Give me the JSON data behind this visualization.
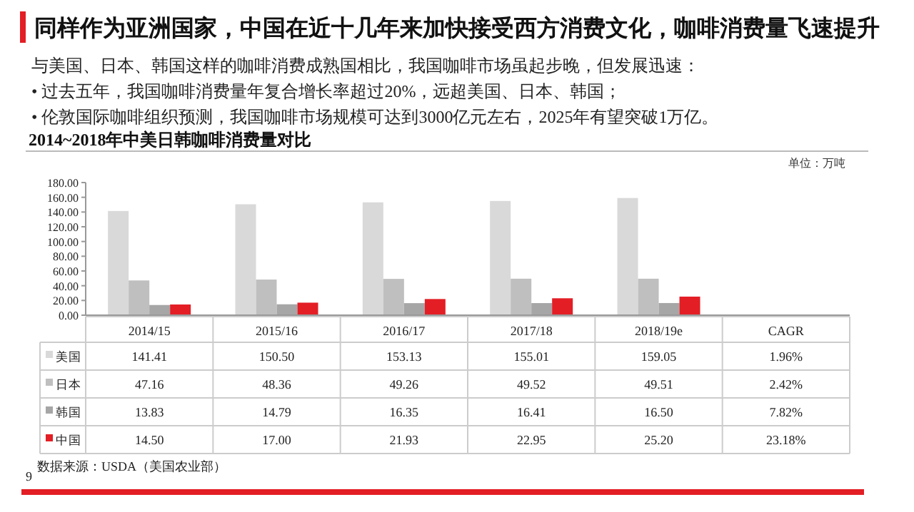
{
  "chart_data": {
    "type": "bar",
    "title": "同样作为亚洲国家，中国在近十几年来加快接受西方消费文化，咖啡消费量飞速提升",
    "subtitle": "2014~2018年中美日韩咖啡消费量对比",
    "ylabel": "单位：万吨",
    "categories": [
      "2014/15",
      "2015/16",
      "2016/17",
      "2017/18",
      "2018/19e",
      "CAGR"
    ],
    "series": [
      {
        "name": "美国",
        "color": "#d9d9d9",
        "values": [
          141.41,
          150.5,
          153.13,
          155.01,
          159.05,
          null
        ],
        "value_labels": [
          "141.41",
          "150.50",
          "153.13",
          "155.01",
          "159.05",
          "1.96%"
        ]
      },
      {
        "name": "日本",
        "color": "#bfbfbf",
        "values": [
          47.16,
          48.36,
          49.26,
          49.52,
          49.51,
          null
        ],
        "value_labels": [
          "47.16",
          "48.36",
          "49.26",
          "49.52",
          "49.51",
          "2.42%"
        ]
      },
      {
        "name": "韩国",
        "color": "#a6a6a6",
        "values": [
          13.83,
          14.79,
          16.35,
          16.41,
          16.5,
          null
        ],
        "value_labels": [
          "13.83",
          "14.79",
          "16.35",
          "16.41",
          "16.50",
          "7.82%"
        ]
      },
      {
        "name": "中国",
        "color": "#e31e25",
        "values": [
          14.5,
          17.0,
          21.93,
          22.95,
          25.2,
          null
        ],
        "value_labels": [
          "14.50",
          "17.00",
          "21.93",
          "22.95",
          "25.20",
          "23.18%"
        ]
      }
    ],
    "ylim": [
      0,
      180
    ],
    "yticks": [
      {
        "value": 0,
        "label": "0.00"
      },
      {
        "value": 20,
        "label": "20.00"
      },
      {
        "value": 40,
        "label": "40.00"
      },
      {
        "value": 60,
        "label": "60.00"
      },
      {
        "value": 80,
        "label": "80.00"
      },
      {
        "value": 100,
        "label": "100.00"
      },
      {
        "value": 120,
        "label": "120.00"
      },
      {
        "value": 140,
        "label": "140.00"
      },
      {
        "value": 160,
        "label": "160.00"
      },
      {
        "value": 180,
        "label": "180.00"
      }
    ],
    "legend": "bottom left",
    "annotations": [
      "与美国、日本、韩国这样的咖啡消费成熟国相比，我国咖啡市场虽起步晚，但发展迅速：",
      "•  过去五年，我国咖啡消费量年复合增长率超过20%，远超美国、日本、韩国；",
      "•  伦敦国际咖啡组织预测，我国咖啡市场规模可达到3000亿元左右，2025年有望突破1万亿。",
      "数据来源：USDA（美国农业部）",
      "9"
    ]
  }
}
